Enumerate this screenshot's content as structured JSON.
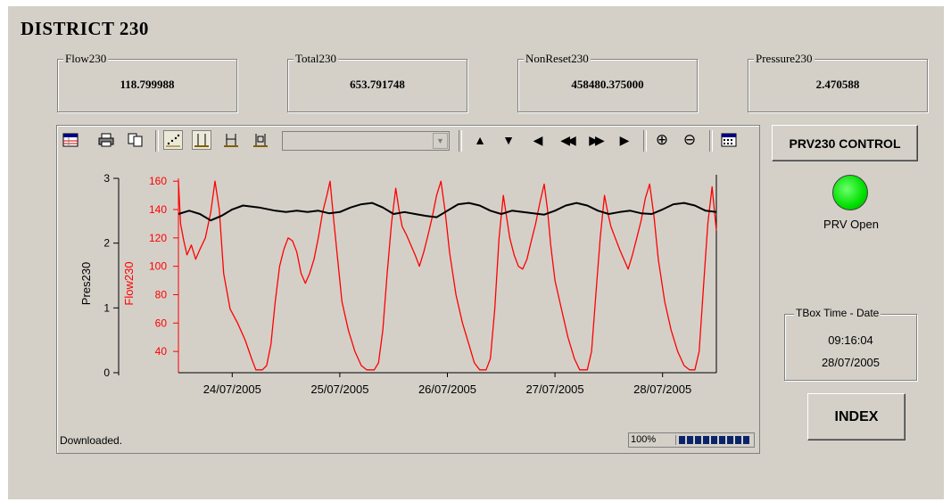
{
  "page": {
    "title": "DISTRICT 230"
  },
  "readouts": [
    {
      "label": "Flow230",
      "value": "118.799988"
    },
    {
      "label": "Total230",
      "value": "653.791748"
    },
    {
      "label": "NonReset230",
      "value": "458480.375000"
    },
    {
      "label": "Pressure230",
      "value": "2.470588"
    }
  ],
  "toolbar": {
    "icons": [
      "table-icon",
      "print-icon",
      "copy-icon",
      "scatter-icon",
      "cursor-icon",
      "cursor-pair-icon",
      "cursor-range-icon",
      "combo-dropdown",
      "scroll-up-icon",
      "scroll-down-icon",
      "step-back-icon",
      "fast-back-icon",
      "fast-forward-icon",
      "step-forward-icon",
      "zoom-in-icon",
      "zoom-out-icon",
      "calendar-icon"
    ],
    "glyphs": {
      "up": "▲",
      "down": "▼",
      "left": "◀",
      "fast_left": "◀◀",
      "fast_right": "▶▶",
      "right": "▶",
      "zoom_in": "⊕",
      "zoom_out": "⊖",
      "dropdown": "▼"
    }
  },
  "chart_data": {
    "type": "line",
    "x_tick_labels": [
      "24/07/2005",
      "25/07/2005",
      "26/07/2005",
      "27/07/2005",
      "28/07/2005"
    ],
    "xlim_days": [
      0,
      5
    ],
    "y_left_outer": {
      "label": "Pres230",
      "ticks": [
        "3",
        "2",
        "1",
        "0"
      ],
      "range": [
        0,
        3
      ],
      "color": "#000000"
    },
    "y_left_inner": {
      "label": "Flow230",
      "ticks": [
        "160",
        "140",
        "120",
        "100",
        "80",
        "60",
        "40"
      ],
      "range": [
        25,
        162
      ],
      "color": "#ff0000"
    },
    "series": [
      {
        "name": "Flow230",
        "color": "#ff0000",
        "points": [
          [
            0.0,
            160
          ],
          [
            0.02,
            130
          ],
          [
            0.05,
            118
          ],
          [
            0.08,
            108
          ],
          [
            0.12,
            115
          ],
          [
            0.16,
            105
          ],
          [
            0.2,
            112
          ],
          [
            0.25,
            120
          ],
          [
            0.3,
            138
          ],
          [
            0.34,
            160
          ],
          [
            0.38,
            140
          ],
          [
            0.42,
            95
          ],
          [
            0.48,
            70
          ],
          [
            0.55,
            60
          ],
          [
            0.62,
            48
          ],
          [
            0.68,
            35
          ],
          [
            0.72,
            27
          ],
          [
            0.78,
            27
          ],
          [
            0.82,
            30
          ],
          [
            0.86,
            45
          ],
          [
            0.9,
            75
          ],
          [
            0.94,
            100
          ],
          [
            0.98,
            112
          ],
          [
            1.02,
            120
          ],
          [
            1.06,
            118
          ],
          [
            1.1,
            110
          ],
          [
            1.14,
            95
          ],
          [
            1.18,
            88
          ],
          [
            1.22,
            95
          ],
          [
            1.26,
            105
          ],
          [
            1.3,
            120
          ],
          [
            1.34,
            138
          ],
          [
            1.38,
            150
          ],
          [
            1.41,
            160
          ],
          [
            1.44,
            135
          ],
          [
            1.48,
            105
          ],
          [
            1.52,
            75
          ],
          [
            1.58,
            55
          ],
          [
            1.64,
            40
          ],
          [
            1.7,
            30
          ],
          [
            1.75,
            27
          ],
          [
            1.82,
            27
          ],
          [
            1.86,
            32
          ],
          [
            1.9,
            55
          ],
          [
            1.94,
            95
          ],
          [
            1.98,
            130
          ],
          [
            2.02,
            155
          ],
          [
            2.05,
            140
          ],
          [
            2.08,
            128
          ],
          [
            2.12,
            122
          ],
          [
            2.16,
            115
          ],
          [
            2.2,
            108
          ],
          [
            2.24,
            100
          ],
          [
            2.28,
            110
          ],
          [
            2.32,
            122
          ],
          [
            2.36,
            135
          ],
          [
            2.4,
            150
          ],
          [
            2.44,
            160
          ],
          [
            2.48,
            138
          ],
          [
            2.52,
            110
          ],
          [
            2.58,
            80
          ],
          [
            2.64,
            60
          ],
          [
            2.7,
            45
          ],
          [
            2.75,
            32
          ],
          [
            2.8,
            27
          ],
          [
            2.86,
            27
          ],
          [
            2.9,
            35
          ],
          [
            2.94,
            70
          ],
          [
            2.98,
            120
          ],
          [
            3.02,
            150
          ],
          [
            3.05,
            135
          ],
          [
            3.08,
            120
          ],
          [
            3.12,
            108
          ],
          [
            3.16,
            100
          ],
          [
            3.2,
            98
          ],
          [
            3.24,
            105
          ],
          [
            3.28,
            118
          ],
          [
            3.32,
            130
          ],
          [
            3.36,
            145
          ],
          [
            3.4,
            158
          ],
          [
            3.43,
            140
          ],
          [
            3.46,
            115
          ],
          [
            3.5,
            90
          ],
          [
            3.56,
            70
          ],
          [
            3.62,
            50
          ],
          [
            3.68,
            35
          ],
          [
            3.73,
            27
          ],
          [
            3.8,
            27
          ],
          [
            3.84,
            40
          ],
          [
            3.88,
            80
          ],
          [
            3.92,
            120
          ],
          [
            3.96,
            150
          ],
          [
            3.99,
            138
          ],
          [
            4.02,
            128
          ],
          [
            4.06,
            120
          ],
          [
            4.1,
            112
          ],
          [
            4.14,
            105
          ],
          [
            4.18,
            98
          ],
          [
            4.22,
            108
          ],
          [
            4.26,
            120
          ],
          [
            4.3,
            132
          ],
          [
            4.34,
            148
          ],
          [
            4.38,
            158
          ],
          [
            4.42,
            135
          ],
          [
            4.46,
            105
          ],
          [
            4.52,
            75
          ],
          [
            4.58,
            55
          ],
          [
            4.64,
            40
          ],
          [
            4.7,
            30
          ],
          [
            4.75,
            27
          ],
          [
            4.8,
            27
          ],
          [
            4.84,
            40
          ],
          [
            4.88,
            85
          ],
          [
            4.92,
            130
          ],
          [
            4.96,
            156
          ],
          [
            5.0,
            125
          ]
        ]
      },
      {
        "name": "Pres230",
        "color": "#000000",
        "points": [
          [
            0.0,
            2.45
          ],
          [
            0.1,
            2.5
          ],
          [
            0.2,
            2.45
          ],
          [
            0.3,
            2.35
          ],
          [
            0.4,
            2.42
          ],
          [
            0.5,
            2.52
          ],
          [
            0.6,
            2.58
          ],
          [
            0.75,
            2.55
          ],
          [
            0.9,
            2.5
          ],
          [
            1.0,
            2.48
          ],
          [
            1.1,
            2.5
          ],
          [
            1.2,
            2.48
          ],
          [
            1.3,
            2.5
          ],
          [
            1.4,
            2.46
          ],
          [
            1.5,
            2.48
          ],
          [
            1.6,
            2.55
          ],
          [
            1.7,
            2.6
          ],
          [
            1.8,
            2.62
          ],
          [
            1.9,
            2.55
          ],
          [
            2.0,
            2.45
          ],
          [
            2.1,
            2.48
          ],
          [
            2.2,
            2.45
          ],
          [
            2.3,
            2.42
          ],
          [
            2.4,
            2.4
          ],
          [
            2.5,
            2.5
          ],
          [
            2.6,
            2.6
          ],
          [
            2.7,
            2.62
          ],
          [
            2.8,
            2.58
          ],
          [
            2.9,
            2.5
          ],
          [
            3.0,
            2.45
          ],
          [
            3.1,
            2.5
          ],
          [
            3.2,
            2.48
          ],
          [
            3.3,
            2.46
          ],
          [
            3.4,
            2.44
          ],
          [
            3.5,
            2.5
          ],
          [
            3.6,
            2.58
          ],
          [
            3.7,
            2.62
          ],
          [
            3.8,
            2.58
          ],
          [
            3.9,
            2.5
          ],
          [
            4.0,
            2.45
          ],
          [
            4.1,
            2.48
          ],
          [
            4.2,
            2.5
          ],
          [
            4.3,
            2.46
          ],
          [
            4.4,
            2.45
          ],
          [
            4.5,
            2.52
          ],
          [
            4.6,
            2.6
          ],
          [
            4.7,
            2.62
          ],
          [
            4.8,
            2.58
          ],
          [
            4.9,
            2.5
          ],
          [
            5.0,
            2.48
          ]
        ]
      }
    ],
    "grid": false
  },
  "status": {
    "text": "Downloaded.",
    "progress_label": "100%",
    "progress_fraction": 1.0
  },
  "controls": {
    "prv_button": "PRV230 CONTROL",
    "led_label": "PRV Open",
    "led_color": "#00e000",
    "index_button": "INDEX"
  },
  "tbox": {
    "legend": "TBox Time - Date",
    "time": "09:16:04",
    "date": "28/07/2005"
  }
}
